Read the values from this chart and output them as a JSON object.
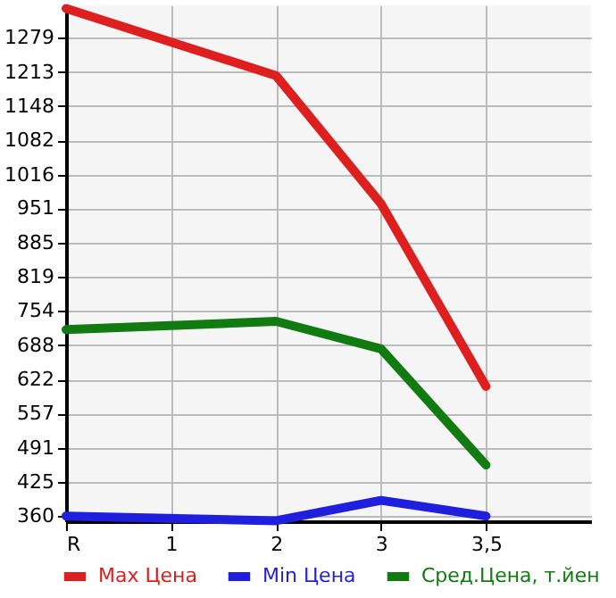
{
  "chart_data": {
    "type": "line",
    "categories": [
      "R",
      "1",
      "2",
      "3",
      "3,5"
    ],
    "series": [
      {
        "name": "Max Цена",
        "color": "#dd1f1f",
        "values": [
          1335,
          null,
          1206,
          960,
          609
        ]
      },
      {
        "name": "Min Цена",
        "color": "#1f1fdd",
        "values": [
          360,
          null,
          351,
          390,
          360
        ]
      },
      {
        "name": "Сред.Цена, т.йен",
        "color": "#117a11",
        "values": [
          718,
          null,
          734,
          681,
          458
        ]
      }
    ],
    "ylim": [
      350,
      1341
    ],
    "yticks": [
      360,
      425,
      491,
      557,
      622,
      688,
      754,
      819,
      885,
      951,
      1016,
      1082,
      1148,
      1213,
      1279
    ],
    "grid": true,
    "legend": "bottom",
    "marker": "none",
    "line_style": "solid"
  }
}
